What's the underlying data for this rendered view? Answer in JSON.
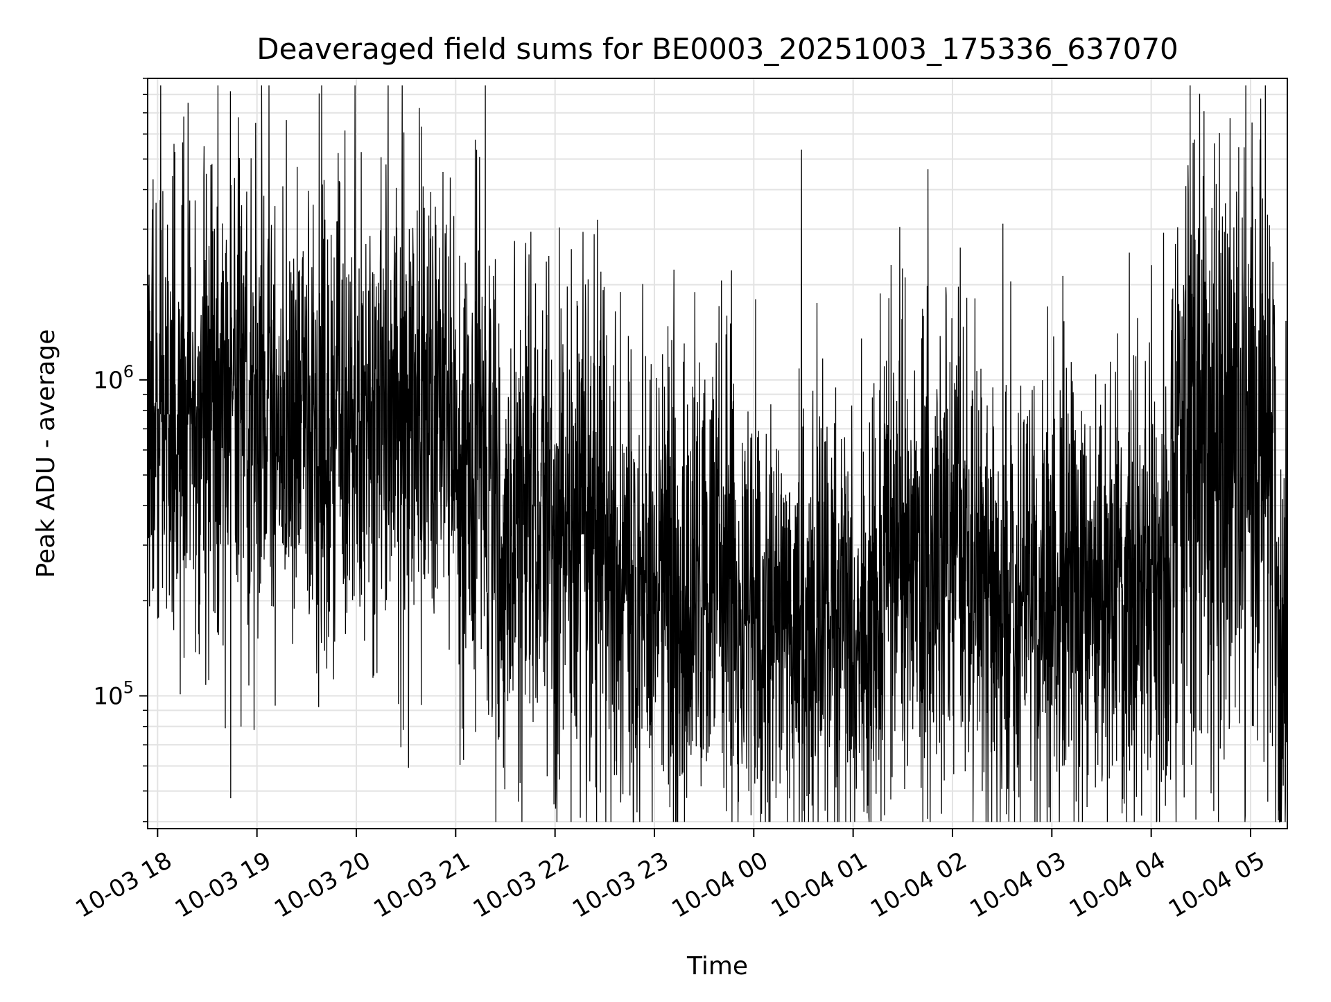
{
  "chart_data": {
    "type": "line",
    "title": "Deaveraged field sums for BE0003_20251003_175336_637070",
    "xlabel": "Time",
    "ylabel": "Peak ADU - average",
    "yscale": "log",
    "ylim": [
      38000,
      9000000
    ],
    "x_hours_range": [
      17.9,
      29.37
    ],
    "grid": true,
    "x_ticks": [
      {
        "hours": 18,
        "label": "10-03 18"
      },
      {
        "hours": 19,
        "label": "10-03 19"
      },
      {
        "hours": 20,
        "label": "10-03 20"
      },
      {
        "hours": 21,
        "label": "10-03 21"
      },
      {
        "hours": 22,
        "label": "10-03 22"
      },
      {
        "hours": 23,
        "label": "10-03 23"
      },
      {
        "hours": 24,
        "label": "10-04 00"
      },
      {
        "hours": 25,
        "label": "10-04 01"
      },
      {
        "hours": 26,
        "label": "10-04 02"
      },
      {
        "hours": 27,
        "label": "10-04 03"
      },
      {
        "hours": 28,
        "label": "10-04 04"
      },
      {
        "hours": 29,
        "label": "10-04 05"
      }
    ],
    "y_ticks": [
      {
        "value": 100000,
        "base": "10",
        "exp": "5"
      },
      {
        "value": 1000000,
        "base": "10",
        "exp": "6"
      }
    ],
    "series_profile": {
      "points": 4200,
      "segments": [
        {
          "from": 17.9,
          "to": 21.0,
          "median": 800000,
          "spread": 0.38
        },
        {
          "from": 21.0,
          "to": 21.3,
          "median": 650000,
          "spread": 0.42
        },
        {
          "from": 21.3,
          "to": 22.5,
          "median": 360000,
          "spread": 0.42
        },
        {
          "from": 22.5,
          "to": 23.8,
          "median": 230000,
          "spread": 0.36
        },
        {
          "from": 23.8,
          "to": 25.3,
          "median": 170000,
          "spread": 0.36
        },
        {
          "from": 25.3,
          "to": 26.3,
          "median": 270000,
          "spread": 0.36
        },
        {
          "from": 26.3,
          "to": 28.2,
          "median": 200000,
          "spread": 0.36
        },
        {
          "from": 28.2,
          "to": 29.25,
          "median": 600000,
          "spread": 0.5
        },
        {
          "from": 29.25,
          "to": 29.37,
          "median": 150000,
          "spread": 0.4
        }
      ],
      "notable_points": [
        {
          "hours": 19.52,
          "value": 7200000
        },
        {
          "hours": 19.52,
          "value": 3000000
        },
        {
          "hours": 20.98,
          "value": 3300000
        },
        {
          "hours": 18.1,
          "value": 3100000
        },
        {
          "hours": 18.84,
          "value": 80000
        },
        {
          "hours": 18.97,
          "value": 78000
        },
        {
          "hours": 22.66,
          "value": 46000
        },
        {
          "hours": 23.95,
          "value": 50000
        },
        {
          "hours": 25.38,
          "value": 47000
        },
        {
          "hours": 26.62,
          "value": 50000
        },
        {
          "hours": 24.02,
          "value": 1800000
        },
        {
          "hours": 28.21,
          "value": 1800000
        },
        {
          "hours": 29.23,
          "value": 1800000
        },
        {
          "hours": 29.33,
          "value": 52000
        }
      ]
    }
  }
}
